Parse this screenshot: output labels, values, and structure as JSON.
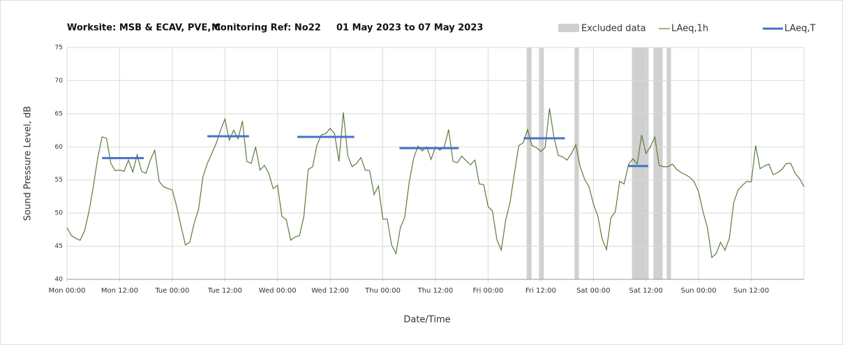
{
  "chart_data": {
    "type": "line",
    "title": [
      "Worksite: MSB & ECAV, PVE, C",
      "Monitoring Ref: No22",
      "01 May 2023 to 07 May 2023"
    ],
    "x_label": "Date/Time",
    "y_label": "Sound Pressure Level, dB",
    "xlim": [
      0,
      168
    ],
    "ylim": [
      40,
      75
    ],
    "yticks": [
      40,
      45,
      50,
      55,
      60,
      65,
      70,
      75
    ],
    "xticks": [
      {
        "value": 0,
        "label": "Mon 00:00"
      },
      {
        "value": 12,
        "label": "Mon 12:00"
      },
      {
        "value": 24,
        "label": "Tue 00:00"
      },
      {
        "value": 36,
        "label": "Tue 12:00"
      },
      {
        "value": 48,
        "label": "Wed 00:00"
      },
      {
        "value": 60,
        "label": "Wed 12:00"
      },
      {
        "value": 72,
        "label": "Thu 00:00"
      },
      {
        "value": 84,
        "label": "Thu 12:00"
      },
      {
        "value": 96,
        "label": "Fri 00:00"
      },
      {
        "value": 108,
        "label": "Fri 12:00"
      },
      {
        "value": 120,
        "label": "Sat 00:00"
      },
      {
        "value": 132,
        "label": "Sat 12:00"
      },
      {
        "value": 144,
        "label": "Sun 00:00"
      },
      {
        "value": 156,
        "label": "Sun 12:00"
      }
    ],
    "grid": true,
    "x": [
      0,
      1,
      2,
      3,
      4,
      5,
      6,
      7,
      8,
      9,
      10,
      11,
      12,
      13,
      14,
      15,
      16,
      17,
      18,
      19,
      20,
      21,
      22,
      23,
      24,
      25,
      26,
      27,
      28,
      29,
      30,
      31,
      32,
      33,
      34,
      35,
      36,
      37,
      38,
      39,
      40,
      41,
      42,
      43,
      44,
      45,
      46,
      47,
      48,
      49,
      50,
      51,
      52,
      53,
      54,
      55,
      56,
      57,
      58,
      59,
      60,
      61,
      62,
      63,
      64,
      65,
      66,
      67,
      68,
      69,
      70,
      71,
      72,
      73,
      74,
      75,
      76,
      77,
      78,
      79,
      80,
      81,
      82,
      83,
      84,
      85,
      86,
      87,
      88,
      89,
      90,
      91,
      92,
      93,
      94,
      95,
      96,
      97,
      98,
      99,
      100,
      101,
      102,
      103,
      104,
      105,
      106,
      107,
      108,
      109,
      110,
      111,
      112,
      113,
      114,
      115,
      116,
      117,
      118,
      119,
      120,
      121,
      122,
      123,
      124,
      125,
      126,
      127,
      128,
      129,
      130,
      131,
      132,
      133,
      134,
      135,
      136,
      137,
      138,
      139,
      140,
      141,
      142,
      143,
      144,
      145,
      146,
      147,
      148,
      149,
      150,
      151,
      152,
      153,
      154,
      155,
      156,
      157,
      158,
      159,
      160,
      161,
      162,
      163,
      164,
      165,
      166,
      167,
      168
    ],
    "series": [
      {
        "name": "LAeq,1h",
        "color": "#5b7b3b",
        "values": [
          47.8,
          46.6,
          46.2,
          45.9,
          47.3,
          50.2,
          54,
          58.3,
          61.5,
          61.3,
          57.5,
          56.4,
          56.5,
          56.3,
          58,
          56.2,
          58.8,
          56.3,
          56,
          58,
          59.5,
          54.8,
          54,
          53.7,
          53.5,
          51,
          48,
          45.2,
          45.6,
          48.5,
          50.6,
          55.5,
          57.5,
          59,
          60.5,
          62.5,
          64.2,
          61,
          62.5,
          61.2,
          63.9,
          57.8,
          57.5,
          60,
          56.5,
          57.2,
          56,
          53.7,
          54.2,
          49.5,
          49,
          45.9,
          46.4,
          46.6,
          49.5,
          56.6,
          57,
          60.3,
          61.8,
          62,
          62.8,
          62,
          57.8,
          65.2,
          58.7,
          57,
          57.5,
          58.4,
          56.5,
          56.4,
          52.8,
          54.1,
          49.1,
          49.1,
          45.2,
          43.9,
          47.8,
          49.4,
          54.6,
          58.2,
          60.1,
          59.4,
          60,
          58.1,
          60,
          59.5,
          60,
          62.6,
          57.8,
          57.6,
          58.6,
          57.9,
          57.3,
          58,
          54.4,
          54.3,
          51,
          50.3,
          46,
          44.4,
          48.9,
          51.6,
          56,
          60.2,
          60.6,
          62.6,
          60.2,
          59.9,
          59.3,
          59.9,
          65.8,
          61.5,
          58.7,
          58.5,
          58,
          59,
          60.3,
          57,
          55.1,
          54,
          51.4,
          49.6,
          46.1,
          44.5,
          49.3,
          50.2,
          54.8,
          54.4,
          57.3,
          58.2,
          57.4,
          61.8,
          59,
          60,
          61.5,
          57.2,
          57,
          57,
          57.4,
          56.6,
          56.1,
          55.8,
          55.4,
          54.7,
          53.2,
          50.2,
          47.8,
          43.3,
          43.9,
          45.6,
          44.4,
          46.2,
          51.6,
          53.5,
          54.2,
          54.8,
          54.7,
          60.2,
          56.7,
          57.1,
          57.4,
          55.8,
          56.1,
          56.6,
          57.5,
          57.5,
          56,
          55.2,
          54
        ]
      }
    ],
    "period_series": {
      "name": "LAeq,T",
      "color": "#4472c4",
      "segments": [
        {
          "start": 8,
          "end": 17.5,
          "value": 58.3
        },
        {
          "start": 32,
          "end": 41.5,
          "value": 61.6
        },
        {
          "start": 52.5,
          "end": 65.5,
          "value": 61.5
        },
        {
          "start": 75.8,
          "end": 89.3,
          "value": 59.8
        },
        {
          "start": 104.1,
          "end": 113.5,
          "value": 61.3
        },
        {
          "start": 128,
          "end": 132.5,
          "value": 57.1
        }
      ]
    },
    "excluded": {
      "name": "Excluded data",
      "color": "#d0d0d0",
      "ranges": [
        {
          "start": 104.8,
          "end": 105.9
        },
        {
          "start": 107.6,
          "end": 108.7
        },
        {
          "start": 115.7,
          "end": 116.7
        },
        {
          "start": 128.8,
          "end": 132.6
        },
        {
          "start": 133.7,
          "end": 135.8
        },
        {
          "start": 136.7,
          "end": 137.7
        }
      ]
    }
  }
}
